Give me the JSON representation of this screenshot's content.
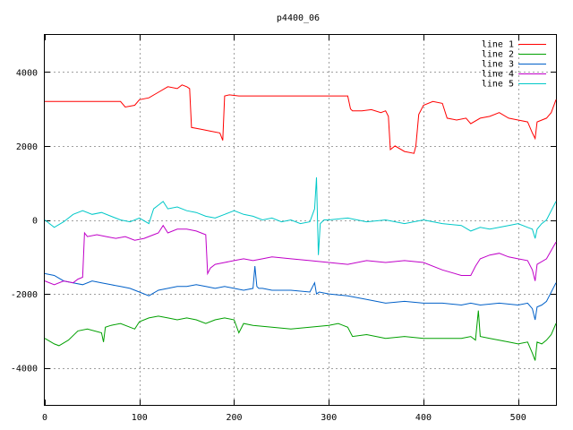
{
  "chart_data": {
    "type": "line",
    "title": "p4400_06",
    "xlabel": "",
    "ylabel": "",
    "xlim": [
      0,
      540
    ],
    "ylim": [
      -5000,
      5000
    ],
    "xticks": [
      0,
      100,
      200,
      300,
      400,
      500
    ],
    "yticks": [
      -4000,
      -2000,
      0,
      2000,
      4000
    ],
    "grid": true,
    "legend_position": "top-right",
    "series": [
      {
        "name": "line 1",
        "color": "#ff0000",
        "x": [
          0,
          80,
          85,
          95,
          100,
          110,
          120,
          130,
          140,
          145,
          150,
          153,
          155,
          165,
          175,
          185,
          188,
          190,
          195,
          205,
          215,
          300,
          320,
          323,
          325,
          335,
          345,
          355,
          360,
          363,
          365,
          370,
          380,
          390,
          392,
          395,
          400,
          410,
          420,
          425,
          435,
          445,
          450,
          460,
          470,
          480,
          490,
          500,
          510,
          515,
          518,
          520,
          530,
          535,
          540
        ],
        "y": [
          3200,
          3200,
          3050,
          3100,
          3250,
          3300,
          3450,
          3600,
          3550,
          3650,
          3600,
          3550,
          2500,
          2450,
          2400,
          2350,
          2150,
          3350,
          3380,
          3350,
          3350,
          3350,
          3350,
          3000,
          2950,
          2950,
          2980,
          2900,
          2950,
          2800,
          1900,
          2000,
          1850,
          1800,
          2000,
          2850,
          3100,
          3200,
          3150,
          2750,
          2700,
          2750,
          2600,
          2750,
          2800,
          2900,
          2750,
          2700,
          2650,
          2350,
          2200,
          2650,
          2750,
          2900,
          3250
        ]
      },
      {
        "name": "line 2",
        "color": "#00a000",
        "x": [
          0,
          10,
          15,
          25,
          35,
          45,
          60,
          62,
          64,
          70,
          80,
          95,
          100,
          110,
          120,
          130,
          140,
          150,
          160,
          170,
          180,
          190,
          200,
          205,
          210,
          220,
          240,
          260,
          280,
          300,
          310,
          320,
          325,
          340,
          360,
          380,
          400,
          420,
          440,
          450,
          455,
          458,
          460,
          470,
          480,
          490,
          500,
          510,
          515,
          518,
          520,
          525,
          530,
          535,
          540
        ],
        "y": [
          -3200,
          -3350,
          -3400,
          -3250,
          -3000,
          -2950,
          -3050,
          -3300,
          -2900,
          -2850,
          -2800,
          -2950,
          -2750,
          -2650,
          -2600,
          -2650,
          -2700,
          -2650,
          -2700,
          -2800,
          -2700,
          -2650,
          -2700,
          -3050,
          -2800,
          -2850,
          -2900,
          -2950,
          -2900,
          -2850,
          -2800,
          -2900,
          -3150,
          -3100,
          -3200,
          -3150,
          -3200,
          -3200,
          -3200,
          -3150,
          -3250,
          -2450,
          -3150,
          -3200,
          -3250,
          -3300,
          -3350,
          -3300,
          -3600,
          -3800,
          -3300,
          -3350,
          -3250,
          -3100,
          -2800
        ]
      },
      {
        "name": "line 3",
        "color": "#0060c8",
        "x": [
          0,
          10,
          20,
          30,
          40,
          50,
          60,
          70,
          80,
          90,
          100,
          110,
          120,
          130,
          140,
          150,
          160,
          170,
          180,
          190,
          200,
          210,
          220,
          222,
          224,
          226,
          230,
          240,
          260,
          280,
          285,
          287,
          290,
          300,
          320,
          340,
          360,
          380,
          400,
          420,
          440,
          450,
          460,
          480,
          500,
          510,
          515,
          518,
          520,
          525,
          530,
          540
        ],
        "y": [
          -1450,
          -1500,
          -1650,
          -1700,
          -1750,
          -1650,
          -1700,
          -1750,
          -1800,
          -1850,
          -1950,
          -2050,
          -1900,
          -1850,
          -1800,
          -1800,
          -1750,
          -1800,
          -1850,
          -1800,
          -1850,
          -1900,
          -1850,
          -1250,
          -1800,
          -1850,
          -1850,
          -1900,
          -1900,
          -1950,
          -1700,
          -2000,
          -1950,
          -2000,
          -2050,
          -2150,
          -2250,
          -2200,
          -2250,
          -2250,
          -2300,
          -2250,
          -2300,
          -2250,
          -2300,
          -2250,
          -2400,
          -2700,
          -2350,
          -2300,
          -2200,
          -1700
        ]
      },
      {
        "name": "line 4",
        "color": "#c000c8",
        "x": [
          0,
          10,
          20,
          30,
          35,
          40,
          42,
          45,
          55,
          65,
          75,
          85,
          95,
          105,
          115,
          120,
          125,
          130,
          140,
          150,
          160,
          170,
          172,
          175,
          180,
          190,
          200,
          210,
          220,
          230,
          240,
          260,
          280,
          300,
          320,
          340,
          360,
          380,
          400,
          420,
          440,
          450,
          455,
          460,
          470,
          480,
          490,
          500,
          510,
          515,
          518,
          520,
          530,
          540
        ],
        "y": [
          -1650,
          -1750,
          -1650,
          -1700,
          -1600,
          -1550,
          -350,
          -450,
          -400,
          -450,
          -500,
          -450,
          -550,
          -500,
          -400,
          -350,
          -150,
          -350,
          -250,
          -250,
          -300,
          -400,
          -1450,
          -1300,
          -1200,
          -1150,
          -1100,
          -1050,
          -1100,
          -1050,
          -1000,
          -1050,
          -1100,
          -1150,
          -1200,
          -1100,
          -1150,
          -1100,
          -1150,
          -1350,
          -1500,
          -1500,
          -1250,
          -1050,
          -950,
          -900,
          -1000,
          -1050,
          -1100,
          -1350,
          -1650,
          -1200,
          -1050,
          -600
        ]
      },
      {
        "name": "line 5",
        "color": "#00c8c8",
        "x": [
          0,
          10,
          20,
          30,
          40,
          50,
          60,
          70,
          80,
          90,
          100,
          110,
          115,
          120,
          125,
          130,
          140,
          150,
          160,
          170,
          180,
          190,
          200,
          210,
          220,
          230,
          240,
          250,
          260,
          270,
          280,
          285,
          287,
          289,
          291,
          295,
          300,
          320,
          340,
          360,
          380,
          400,
          420,
          440,
          450,
          460,
          470,
          480,
          490,
          500,
          510,
          515,
          518,
          520,
          525,
          530,
          540
        ],
        "y": [
          0,
          -200,
          -50,
          150,
          250,
          150,
          200,
          100,
          0,
          -50,
          50,
          -100,
          300,
          400,
          500,
          300,
          350,
          250,
          200,
          100,
          50,
          150,
          250,
          150,
          100,
          0,
          50,
          -50,
          0,
          -100,
          -50,
          300,
          1150,
          -950,
          -100,
          0,
          0,
          50,
          -50,
          0,
          -100,
          0,
          -100,
          -150,
          -300,
          -200,
          -250,
          -200,
          -150,
          -100,
          -200,
          -250,
          -500,
          -250,
          -100,
          0,
          500
        ]
      }
    ]
  }
}
